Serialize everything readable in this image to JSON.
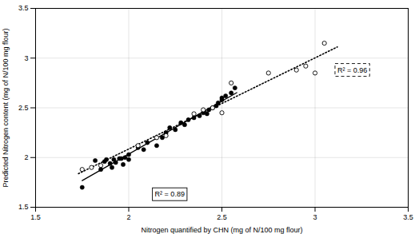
{
  "chart_data": {
    "type": "scatter",
    "xlabel": "Nitrogen quantified by CHN (mg of N/100 mg flour)",
    "ylabel": "Predicted Nitrogen content (mg of N/100 mg flour)",
    "xlim": [
      1.5,
      3.5
    ],
    "ylim": [
      1.5,
      3.5
    ],
    "xticks": [
      1.5,
      2.0,
      2.5,
      3.0,
      3.5
    ],
    "yticks": [
      1.5,
      2.0,
      2.5,
      3.0,
      3.5
    ],
    "grid": true,
    "series": [
      {
        "type": "line",
        "line_style": "solid",
        "color": "black",
        "x": [
          1.75,
          2.58
        ],
        "values": [
          1.7676,
          2.6528
        ]
      },
      {
        "type": "line",
        "line_style": "dotted",
        "color": "black",
        "x": [
          1.73,
          3.12
        ],
        "values": [
          1.8379,
          3.1123
        ]
      },
      {
        "type": "scatter",
        "marker": "filled_circle",
        "color": "black",
        "x": [
          1.75,
          1.82,
          1.85,
          1.87,
          1.88,
          1.9,
          1.91,
          1.92,
          1.93,
          1.95,
          1.96,
          1.97,
          1.98,
          2.0,
          2.0,
          2.05,
          2.08,
          2.1,
          2.15,
          2.18,
          2.2,
          2.22,
          2.25,
          2.28,
          2.3,
          2.32,
          2.35,
          2.38,
          2.4,
          2.42,
          2.43,
          2.45,
          2.47,
          2.48,
          2.5,
          2.5,
          2.52,
          2.55,
          2.57
        ],
        "values": [
          1.7,
          1.97,
          1.88,
          1.96,
          1.98,
          1.94,
          1.9,
          1.98,
          1.95,
          1.99,
          1.99,
          1.93,
          2.0,
          1.98,
          2.03,
          2.1,
          2.08,
          2.15,
          2.12,
          2.2,
          2.25,
          2.3,
          2.28,
          2.35,
          2.33,
          2.38,
          2.4,
          2.42,
          2.45,
          2.44,
          2.48,
          2.5,
          2.52,
          2.55,
          2.58,
          2.6,
          2.62,
          2.65,
          2.7
        ]
      },
      {
        "type": "scatter",
        "marker": "open_circle",
        "color": "black",
        "x": [
          1.75,
          1.8,
          1.85,
          2.05,
          2.15,
          2.2,
          2.35,
          2.4,
          2.45,
          2.5,
          2.55,
          2.75,
          2.9,
          2.95,
          3.0,
          3.05
        ],
        "values": [
          1.88,
          1.9,
          1.92,
          2.12,
          2.2,
          2.22,
          2.44,
          2.48,
          2.5,
          2.45,
          2.75,
          2.85,
          2.88,
          2.92,
          2.85,
          3.15
        ]
      }
    ],
    "annotations": [
      {
        "text": "R² = 0.89",
        "x": 2.22,
        "y": 1.63,
        "line_style": "solid"
      },
      {
        "text": "R² = 0.96",
        "x": 3.2,
        "y": 2.88,
        "line_style": "dashed"
      }
    ]
  }
}
